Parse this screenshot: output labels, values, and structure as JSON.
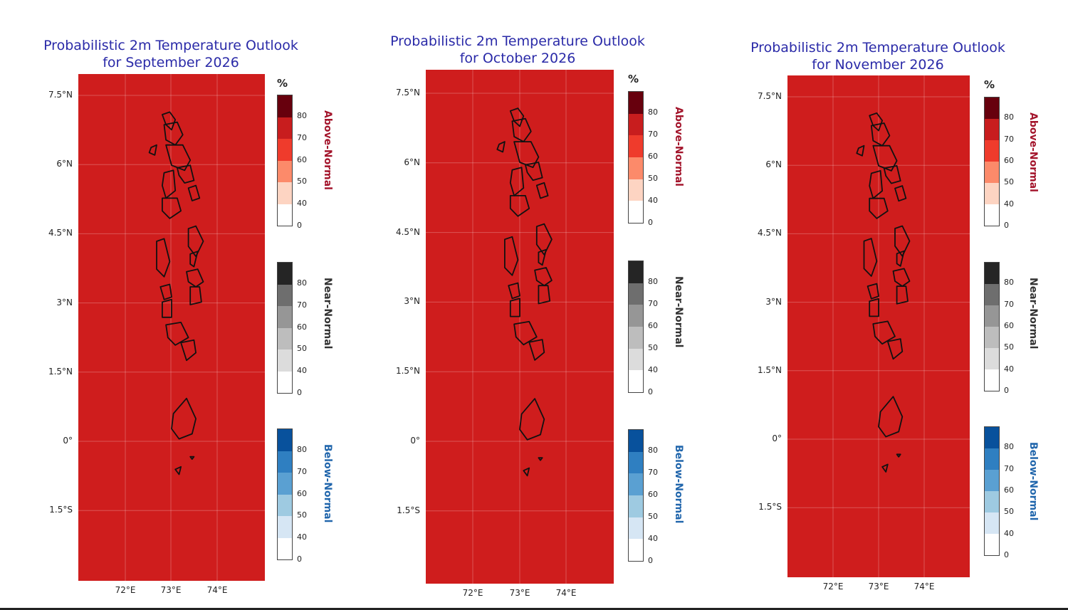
{
  "panels": [
    {
      "title_line1": "Probabilistic 2m Temperature Outlook",
      "title_line2": "for September 2026",
      "category_probability_percent": 80
    },
    {
      "title_line1": "Probabilistic 2m Temperature Outlook",
      "title_line2": "for October 2026",
      "category_probability_percent": 80
    },
    {
      "title_line1": "Probabilistic 2m Temperature Outlook",
      "title_line2": "for November 2026",
      "category_probability_percent": 80
    }
  ],
  "lat_ticks": [
    "7.5°N",
    "6°N",
    "4.5°N",
    "3°N",
    "1.5°N",
    "0°",
    "1.5°S"
  ],
  "lon_ticks": [
    "72°E",
    "73°E",
    "74°E"
  ],
  "colorbar": {
    "unit": "%",
    "tick_labels": [
      "80",
      "70",
      "60",
      "50",
      "40",
      "0"
    ],
    "categories": [
      {
        "label": "Above-Normal",
        "label_color": "#a3142b",
        "colors": [
          "#67000d",
          "#c81d1e",
          "#ef3b2c",
          "#fc8a6a",
          "#fdd4c2",
          "#ffffff"
        ]
      },
      {
        "label": "Near-Normal",
        "label_color": "#333333",
        "colors": [
          "#252525",
          "#6e6e6e",
          "#969696",
          "#bdbdbd",
          "#dcdcdc",
          "#ffffff"
        ]
      },
      {
        "label": "Below-Normal",
        "label_color": "#2166ac",
        "colors": [
          "#08519c",
          "#2f7fc1",
          "#5aa0d2",
          "#9ecae1",
          "#d6e6f4",
          "#ffffff"
        ]
      }
    ]
  },
  "map_fill_color": "#cf1d1d"
}
